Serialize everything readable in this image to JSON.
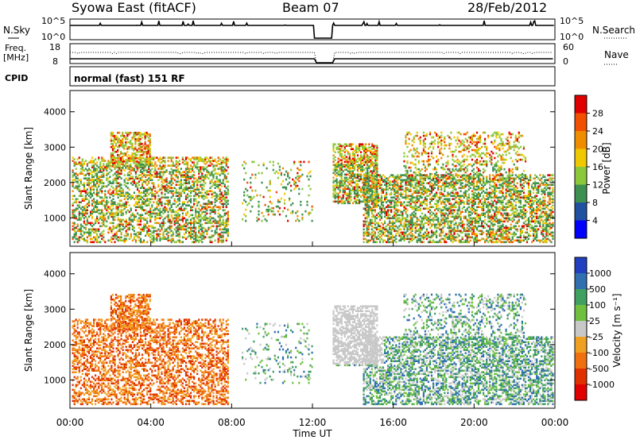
{
  "header": {
    "title": "Syowa East (fitACF)",
    "beam": "Beam 07",
    "date": "28/Feb/2012"
  },
  "top_panels": {
    "nsky_label": "N.Sky",
    "nsearch_label": "N.Search",
    "nsky_ticks": [
      "10^5",
      "10^0"
    ],
    "nsearch_ticks": [
      "10^5",
      "10^0"
    ],
    "freq_label_line1": "Freq.",
    "freq_label_line2": "[MHz]",
    "freq_ticks": [
      "18",
      "8"
    ],
    "nave_label": "Nave",
    "nave_ticks": [
      "60",
      "0"
    ],
    "cpid_label": "CPID",
    "cpid_text": "normal (fast) 151 RF"
  },
  "chart_data": [
    {
      "type": "heatmap",
      "name": "power",
      "ylabel": "Slant Range [km]",
      "xlabel": "",
      "yticks": [
        "4000",
        "3000",
        "2000",
        "1000"
      ],
      "ylim": [
        200,
        4600
      ],
      "xlim_hours": [
        0,
        24
      ],
      "data_gap_hours": [
        12.1,
        13.0
      ],
      "colorbar": {
        "label": "Power [dB]",
        "ticks": [
          "28",
          "24",
          "20",
          "16",
          "12",
          "8",
          "4"
        ],
        "colors": [
          "#e00000",
          "#f05000",
          "#f08c00",
          "#f0c800",
          "#8cc83c",
          "#3c9050",
          "#2050a0",
          "#0000ff"
        ]
      }
    },
    {
      "type": "heatmap",
      "name": "velocity",
      "ylabel": "Slant Range [km]",
      "xlabel": "Time UT",
      "yticks": [
        "4000",
        "3000",
        "2000",
        "1000"
      ],
      "ylim": [
        200,
        4600
      ],
      "xlim_hours": [
        0,
        24
      ],
      "xticks": [
        "00:00",
        "04:00",
        "08:00",
        "12:00",
        "16:00",
        "20:00",
        "00:00"
      ],
      "data_gap_hours": [
        12.1,
        13.0
      ],
      "colorbar": {
        "label": "Velocity [m s⁻¹]",
        "ticks": [
          "1000",
          "500",
          "100",
          "25",
          "-25",
          "-100",
          "-500",
          "-1000"
        ],
        "colors": [
          "#2040c0",
          "#3070b0",
          "#40a060",
          "#70c040",
          "#c8c8c8",
          "#f0a020",
          "#f07010",
          "#e03000",
          "#e00000"
        ]
      }
    }
  ]
}
